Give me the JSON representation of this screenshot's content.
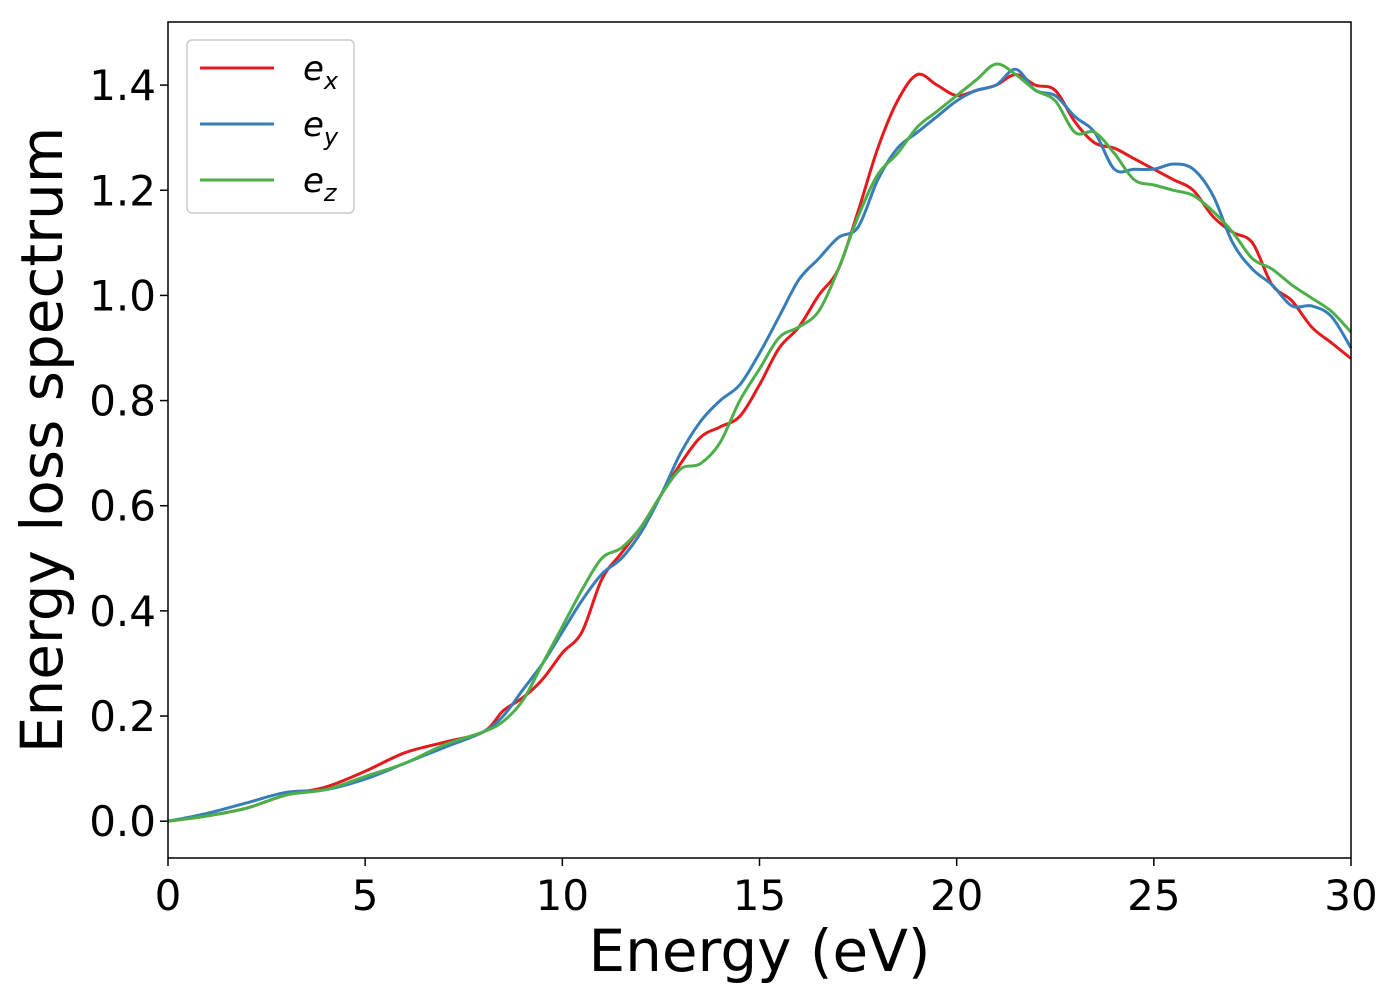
{
  "chart_data": {
    "type": "line",
    "title": "",
    "xlabel": "Energy (eV)",
    "ylabel": "Energy loss spectrum",
    "xlim": [
      0,
      30
    ],
    "ylim": [
      -0.07,
      1.52
    ],
    "xticks": [
      0,
      5,
      10,
      15,
      20,
      25,
      30
    ],
    "yticks": [
      0.0,
      0.2,
      0.4,
      0.6,
      0.8,
      1.0,
      1.2,
      1.4
    ],
    "xtick_labels": [
      "0",
      "5",
      "10",
      "15",
      "20",
      "25",
      "30"
    ],
    "ytick_labels": [
      "0.0",
      "0.2",
      "0.4",
      "0.6",
      "0.8",
      "1.0",
      "1.2",
      "1.4"
    ],
    "grid": false,
    "legend_position": "top-left",
    "series": [
      {
        "name": "e_x",
        "label_base": "e",
        "label_sub": "x",
        "color": "#e41a1c",
        "x": [
          0,
          1,
          2,
          3,
          4,
          5,
          6,
          7,
          8,
          8.5,
          9,
          9.5,
          10,
          10.5,
          11,
          11.5,
          12,
          12.5,
          13,
          13.5,
          14,
          14.5,
          15,
          15.5,
          16,
          16.5,
          17,
          17.5,
          18,
          18.5,
          19,
          19.5,
          20,
          20.5,
          21,
          21.5,
          22,
          22.5,
          23,
          23.5,
          24,
          24.5,
          25,
          25.5,
          26,
          26.5,
          27,
          27.5,
          28,
          28.5,
          29,
          29.5,
          30
        ],
        "y": [
          0.0,
          0.01,
          0.025,
          0.05,
          0.065,
          0.095,
          0.13,
          0.15,
          0.17,
          0.21,
          0.235,
          0.27,
          0.32,
          0.36,
          0.46,
          0.51,
          0.56,
          0.62,
          0.68,
          0.73,
          0.75,
          0.77,
          0.83,
          0.9,
          0.94,
          1.0,
          1.05,
          1.16,
          1.28,
          1.37,
          1.42,
          1.4,
          1.38,
          1.39,
          1.4,
          1.42,
          1.4,
          1.39,
          1.33,
          1.29,
          1.28,
          1.26,
          1.24,
          1.22,
          1.2,
          1.15,
          1.12,
          1.1,
          1.02,
          0.99,
          0.94,
          0.91,
          0.88
        ]
      },
      {
        "name": "e_y",
        "label_base": "e",
        "label_sub": "y",
        "color": "#377eb8",
        "x": [
          0,
          1,
          2,
          3,
          4,
          5,
          6,
          7,
          8,
          8.5,
          9,
          9.5,
          10,
          10.5,
          11,
          11.5,
          12,
          12.5,
          13,
          13.5,
          14,
          14.5,
          15,
          15.5,
          16,
          16.5,
          17,
          17.5,
          18,
          18.5,
          19,
          19.5,
          20,
          20.5,
          21,
          21.5,
          22,
          22.5,
          23,
          23.5,
          24,
          24.5,
          25,
          25.5,
          26,
          26.5,
          27,
          27.5,
          28,
          28.5,
          29,
          29.5,
          30
        ],
        "y": [
          0.0,
          0.015,
          0.035,
          0.055,
          0.06,
          0.08,
          0.11,
          0.14,
          0.17,
          0.2,
          0.25,
          0.3,
          0.36,
          0.42,
          0.47,
          0.5,
          0.55,
          0.62,
          0.7,
          0.76,
          0.8,
          0.83,
          0.89,
          0.96,
          1.03,
          1.07,
          1.11,
          1.13,
          1.22,
          1.28,
          1.31,
          1.34,
          1.37,
          1.39,
          1.4,
          1.43,
          1.39,
          1.38,
          1.34,
          1.31,
          1.24,
          1.24,
          1.24,
          1.25,
          1.24,
          1.19,
          1.1,
          1.05,
          1.02,
          0.98,
          0.98,
          0.96,
          0.9
        ]
      },
      {
        "name": "e_z",
        "label_base": "e",
        "label_sub": "z",
        "color": "#4daf4a",
        "x": [
          0,
          1,
          2,
          3,
          4,
          5,
          6,
          7,
          8,
          8.5,
          9,
          9.5,
          10,
          10.5,
          11,
          11.5,
          12,
          12.5,
          13,
          13.5,
          14,
          14.5,
          15,
          15.5,
          16,
          16.5,
          17,
          17.5,
          18,
          18.5,
          19,
          19.5,
          20,
          20.5,
          21,
          21.5,
          22,
          22.5,
          23,
          23.5,
          24,
          24.5,
          25,
          25.5,
          26,
          26.5,
          27,
          27.5,
          28,
          28.5,
          29,
          29.5,
          30
        ],
        "y": [
          0.0,
          0.01,
          0.025,
          0.05,
          0.06,
          0.085,
          0.11,
          0.145,
          0.17,
          0.19,
          0.23,
          0.3,
          0.37,
          0.44,
          0.5,
          0.52,
          0.56,
          0.62,
          0.67,
          0.68,
          0.72,
          0.8,
          0.86,
          0.92,
          0.94,
          0.97,
          1.05,
          1.15,
          1.23,
          1.27,
          1.32,
          1.35,
          1.38,
          1.41,
          1.44,
          1.42,
          1.39,
          1.37,
          1.31,
          1.31,
          1.27,
          1.22,
          1.21,
          1.2,
          1.19,
          1.16,
          1.12,
          1.07,
          1.05,
          1.02,
          0.995,
          0.97,
          0.93
        ]
      }
    ]
  }
}
